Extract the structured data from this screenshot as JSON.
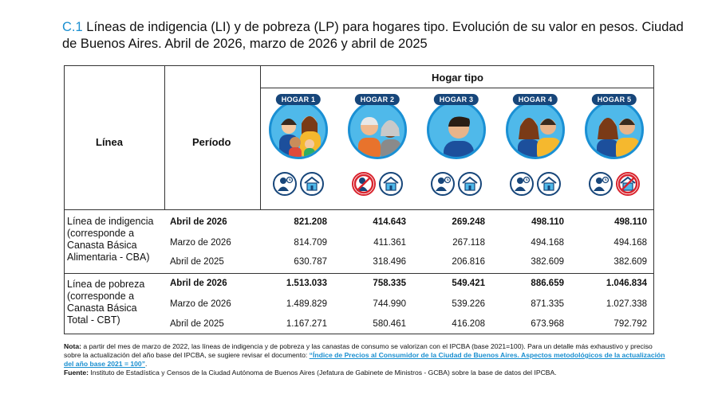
{
  "title": {
    "code": "C.1",
    "text": "Líneas de indigencia (LI) y de pobreza (LP) para hogares tipo. Evolución de su valor en pesos. Ciudad de Buenos Aires. Abril de 2026, marzo de 2026 y abril de 2025"
  },
  "table": {
    "col_linea": "Línea",
    "col_periodo": "Período",
    "col_hogar_tipo": "Hogar tipo",
    "hogares": [
      {
        "label": "HOGAR 1",
        "icons": [
          "worker-icon",
          "house-icon"
        ],
        "crossed": []
      },
      {
        "label": "HOGAR 2",
        "icons": [
          "worker-icon",
          "house-icon"
        ],
        "crossed": [
          "worker-icon"
        ]
      },
      {
        "label": "HOGAR 3",
        "icons": [
          "worker-icon",
          "house-icon"
        ],
        "crossed": []
      },
      {
        "label": "HOGAR 4",
        "icons": [
          "worker-icon",
          "house-icon"
        ],
        "crossed": []
      },
      {
        "label": "HOGAR 5",
        "icons": [
          "worker-icon",
          "house-icon"
        ],
        "crossed": [
          "house-icon"
        ]
      }
    ],
    "sections": [
      {
        "label_lines": [
          "Línea de indigencia",
          "(corresponde a",
          "Canasta Básica",
          "Alimentaria - CBA)"
        ],
        "rows": [
          {
            "periodo": "Abril de 2026",
            "bold": true,
            "values": [
              "821.208",
              "414.643",
              "269.248",
              "498.110",
              "498.110"
            ]
          },
          {
            "periodo": "Marzo de 2026",
            "bold": false,
            "values": [
              "814.709",
              "411.361",
              "267.118",
              "494.168",
              "494.168"
            ]
          },
          {
            "periodo": "Abril de 2025",
            "bold": false,
            "values": [
              "630.787",
              "318.496",
              "206.816",
              "382.609",
              "382.609"
            ]
          }
        ]
      },
      {
        "label_lines": [
          "Línea de pobreza",
          "(corresponde a",
          "Canasta Básica",
          "Total - CBT)"
        ],
        "rows": [
          {
            "periodo": "Abril de 2026",
            "bold": true,
            "values": [
              "1.513.033",
              "758.335",
              "549.421",
              "886.659",
              "1.046.834"
            ]
          },
          {
            "periodo": "Marzo de 2026",
            "bold": false,
            "values": [
              "1.489.829",
              "744.990",
              "539.226",
              "871.335",
              "1.027.338"
            ]
          },
          {
            "periodo": "Abril de 2025",
            "bold": false,
            "values": [
              "1.167.271",
              "580.461",
              "416.208",
              "673.968",
              "792.792"
            ]
          }
        ]
      }
    ]
  },
  "notes": {
    "nota_label": "Nota:",
    "nota_text": " a partir del mes de marzo de 2022, las líneas de indigencia y de pobreza y las canastas de consumo se valorizan con el IPCBA (base 2021=100). Para un detalle más exhaustivo y preciso sobre la actualización del año base del IPCBA, se sugiere revisar el documento: ",
    "nota_link": "“Índice de Precios al Consumidor de la Ciudad de Buenos Aires. Aspectos metodológicos de la actualización del año base 2021 = 100”",
    "nota_end": ".",
    "fuente_label": "Fuente:",
    "fuente_text": " Instituto de Estadística y Censos de la Ciudad Autónoma de Buenos Aires (Jefatura de Gabinete de Ministros - GCBA) sobre la base de datos del IPCBA."
  },
  "colors": {
    "accent": "#1a8fd0",
    "navy": "#17467a",
    "no": "#d9232d"
  }
}
